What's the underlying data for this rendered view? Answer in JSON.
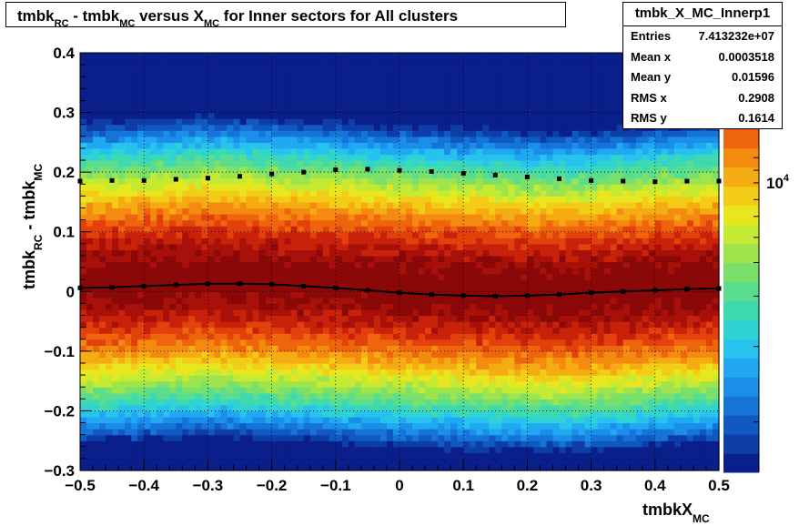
{
  "title_parts": {
    "p1": "tmbk",
    "p1_sub": "RC",
    "p2": " - tmbk",
    "p2_sub": "MC",
    "p3": " versus X",
    "p3_sub": "MC",
    "p4": " for Inner sectors for All clusters"
  },
  "xlabel_parts": {
    "main": "tmbkX",
    "sub": "MC"
  },
  "ylabel_parts": {
    "p1": "tmbk",
    "p1_sub": "RC",
    "p2": " - tmbk",
    "p2_sub": "MC"
  },
  "stats": {
    "name": "tmbk_X_MC_Innerp1",
    "rows": [
      {
        "label": "Entries",
        "value": "7.413232e+07"
      },
      {
        "label": "Mean x",
        "value": "0.0003518"
      },
      {
        "label": "Mean y",
        "value": "0.01596"
      },
      {
        "label": "RMS x",
        "value": "0.2908"
      },
      {
        "label": "RMS y",
        "value": "0.1614"
      }
    ]
  },
  "colorbar": {
    "label_base": "10",
    "label_exp": "4"
  },
  "chart_data": {
    "type": "heatmap",
    "title": "tmbkRC - tmbkMC versus XMC for Inner sectors for All clusters",
    "xlabel": "tmbkXMC",
    "ylabel": "tmbkRC - tmbkMC",
    "xlim": [
      -0.5,
      0.5
    ],
    "ylim": [
      -0.3,
      0.4
    ],
    "zscale": "log",
    "grid": true,
    "x_ticks": [
      -0.5,
      -0.4,
      -0.3,
      -0.2,
      -0.1,
      0,
      0.1,
      0.2,
      0.3,
      0.4,
      0.5
    ],
    "x_tick_labels": [
      "−0.5",
      "−0.4",
      "−0.3",
      "−0.2",
      "−0.1",
      "0",
      "0.1",
      "0.2",
      "0.3",
      "0.4",
      "0.5"
    ],
    "y_ticks": [
      -0.3,
      -0.2,
      -0.1,
      0,
      0.1,
      0.2,
      0.3,
      0.4
    ],
    "y_tick_labels": [
      "−0.3",
      "−0.2",
      "−0.1",
      "0",
      "0.1",
      "0.2",
      "0.3",
      "0.4"
    ],
    "density_profile": {
      "peak_y": 0.01,
      "sigma_y": 0.16,
      "x": [
        -0.5,
        -0.4,
        -0.3,
        -0.2,
        -0.1,
        0,
        0.1,
        0.2,
        0.3,
        0.4,
        0.5
      ],
      "peak_shift": [
        0.005,
        0.01,
        0.015,
        0.01,
        0.005,
        0.0,
        -0.005,
        -0.01,
        -0.01,
        0.0,
        0.005
      ]
    },
    "overlays": [
      {
        "style": "profile-markers",
        "x": [
          -0.5,
          -0.45,
          -0.4,
          -0.35,
          -0.3,
          -0.25,
          -0.2,
          -0.15,
          -0.1,
          -0.05,
          0,
          0.05,
          0.1,
          0.15,
          0.2,
          0.25,
          0.3,
          0.35,
          0.4,
          0.45,
          0.5
        ],
        "y": [
          0.185,
          0.186,
          0.186,
          0.188,
          0.19,
          0.193,
          0.197,
          0.2,
          0.204,
          0.205,
          0.203,
          0.201,
          0.198,
          0.195,
          0.192,
          0.189,
          0.186,
          0.185,
          0.184,
          0.185,
          0.185
        ]
      },
      {
        "style": "profile-markers-line",
        "x": [
          -0.5,
          -0.45,
          -0.4,
          -0.35,
          -0.3,
          -0.25,
          -0.2,
          -0.15,
          -0.1,
          -0.05,
          0,
          0.05,
          0.1,
          0.15,
          0.2,
          0.25,
          0.3,
          0.35,
          0.4,
          0.45,
          0.5
        ],
        "y": [
          0.006,
          0.007,
          0.009,
          0.011,
          0.013,
          0.013,
          0.012,
          0.009,
          0.006,
          0.002,
          -0.002,
          -0.005,
          -0.007,
          -0.008,
          -0.007,
          -0.005,
          -0.002,
          0.0,
          0.002,
          0.004,
          0.005
        ]
      }
    ]
  }
}
